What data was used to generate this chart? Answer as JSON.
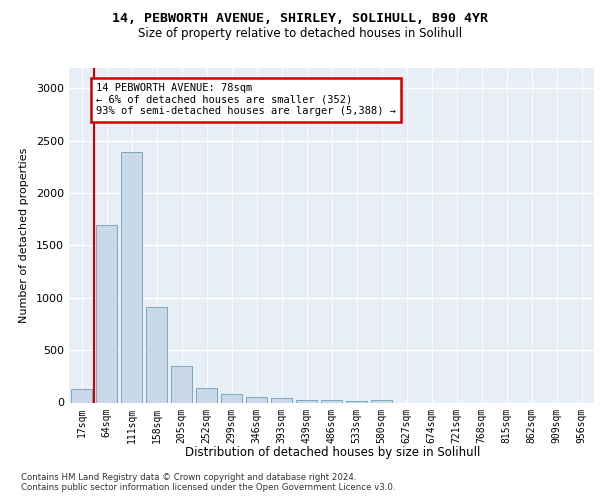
{
  "title_line1": "14, PEBWORTH AVENUE, SHIRLEY, SOLIHULL, B90 4YR",
  "title_line2": "Size of property relative to detached houses in Solihull",
  "xlabel": "Distribution of detached houses by size in Solihull",
  "ylabel": "Number of detached properties",
  "bar_labels": [
    "17sqm",
    "64sqm",
    "111sqm",
    "158sqm",
    "205sqm",
    "252sqm",
    "299sqm",
    "346sqm",
    "393sqm",
    "439sqm",
    "486sqm",
    "533sqm",
    "580sqm",
    "627sqm",
    "674sqm",
    "721sqm",
    "768sqm",
    "815sqm",
    "862sqm",
    "909sqm",
    "956sqm"
  ],
  "bar_values": [
    130,
    1700,
    2390,
    910,
    350,
    140,
    80,
    50,
    40,
    25,
    20,
    15,
    25,
    0,
    0,
    0,
    0,
    0,
    0,
    0,
    0
  ],
  "bar_color": "#c8d8e8",
  "bar_edge_color": "#7aaabb",
  "annotation_text": "14 PEBWORTH AVENUE: 78sqm\n← 6% of detached houses are smaller (352)\n93% of semi-detached houses are larger (5,388) →",
  "annotation_box_color": "#ffffff",
  "annotation_border_color": "#cc0000",
  "red_line_color": "#cc0000",
  "ylim": [
    0,
    3200
  ],
  "yticks": [
    0,
    500,
    1000,
    1500,
    2000,
    2500,
    3000
  ],
  "footer_text": "Contains HM Land Registry data © Crown copyright and database right 2024.\nContains public sector information licensed under the Open Government Licence v3.0.",
  "bg_color": "#ffffff",
  "plot_bg_color": "#e8eef5"
}
